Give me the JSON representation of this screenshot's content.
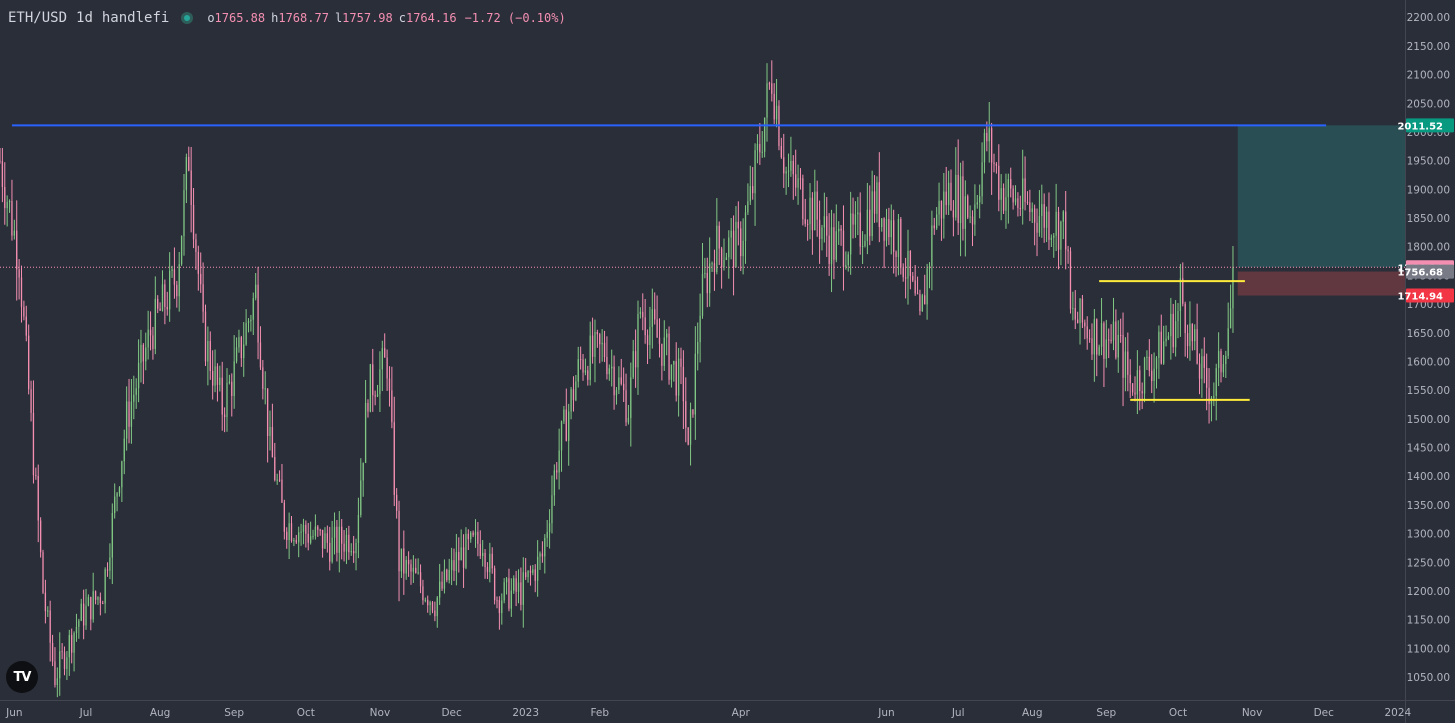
{
  "header": {
    "symbol": "ETH/USD",
    "interval": "1d",
    "source": "handlefi",
    "open_label": "o",
    "open": "1765.88",
    "high_label": "h",
    "high": "1768.77",
    "low_label": "l",
    "low": "1757.98",
    "close_label": "c",
    "close": "1764.16",
    "change": "−1.72 (−0.10%)"
  },
  "logo_text": "TV",
  "colors": {
    "background": "#2a2e39",
    "up": "#81c784",
    "down": "#f48fb1",
    "axis_text": "#b2b5be",
    "resistance_line": "#2962ff",
    "range_lines": "#ffeb3b",
    "target_zone": "#26a69a",
    "stop_zone": "#ef5350"
  },
  "chart_data": {
    "type": "candlestick",
    "ylim": [
      1010,
      2230
    ],
    "y_ticks": [
      1050,
      1100,
      1150,
      1200,
      1250,
      1300,
      1350,
      1400,
      1450,
      1500,
      1550,
      1600,
      1650,
      1700,
      1750,
      1800,
      1850,
      1900,
      1950,
      2000,
      2050,
      2100,
      2150,
      2200
    ],
    "x_range": [
      "2022-05-26",
      "2024-01-04"
    ],
    "x_ticks": [
      {
        "label": "Jun",
        "date": "2022-06-01"
      },
      {
        "label": "Jul",
        "date": "2022-07-01"
      },
      {
        "label": "Aug",
        "date": "2022-08-01"
      },
      {
        "label": "Sep",
        "date": "2022-09-01"
      },
      {
        "label": "Oct",
        "date": "2022-10-01"
      },
      {
        "label": "Nov",
        "date": "2022-11-01"
      },
      {
        "label": "Dec",
        "date": "2022-12-01"
      },
      {
        "label": "2023",
        "date": "2023-01-01"
      },
      {
        "label": "Feb",
        "date": "2023-02-01"
      },
      {
        "label": "Apr",
        "date": "2023-04-01"
      },
      {
        "label": "Jun",
        "date": "2023-06-01"
      },
      {
        "label": "Jul",
        "date": "2023-07-01"
      },
      {
        "label": "Aug",
        "date": "2023-08-01"
      },
      {
        "label": "Sep",
        "date": "2023-09-01"
      },
      {
        "label": "Oct",
        "date": "2023-10-01"
      },
      {
        "label": "Nov",
        "date": "2023-11-01"
      },
      {
        "label": "Dec",
        "date": "2023-12-01"
      },
      {
        "label": "2024",
        "date": "2024-01-01"
      }
    ],
    "price_path": [
      {
        "date": "2022-05-26",
        "price": 1950
      },
      {
        "date": "2022-06-03",
        "price": 1780
      },
      {
        "date": "2022-06-13",
        "price": 1200
      },
      {
        "date": "2022-06-18",
        "price": 1050
      },
      {
        "date": "2022-06-28",
        "price": 1150
      },
      {
        "date": "2022-07-08",
        "price": 1200
      },
      {
        "date": "2022-07-18",
        "price": 1500
      },
      {
        "date": "2022-07-28",
        "price": 1650
      },
      {
        "date": "2022-08-08",
        "price": 1750
      },
      {
        "date": "2022-08-13",
        "price": 1960
      },
      {
        "date": "2022-08-19",
        "price": 1650
      },
      {
        "date": "2022-08-27",
        "price": 1520
      },
      {
        "date": "2022-09-01",
        "price": 1580
      },
      {
        "date": "2022-09-10",
        "price": 1720
      },
      {
        "date": "2022-09-16",
        "price": 1450
      },
      {
        "date": "2022-09-22",
        "price": 1320
      },
      {
        "date": "2022-10-02",
        "price": 1300
      },
      {
        "date": "2022-10-12",
        "price": 1280
      },
      {
        "date": "2022-10-22",
        "price": 1300
      },
      {
        "date": "2022-10-27",
        "price": 1550
      },
      {
        "date": "2022-11-04",
        "price": 1600
      },
      {
        "date": "2022-11-09",
        "price": 1250
      },
      {
        "date": "2022-11-14",
        "price": 1230
      },
      {
        "date": "2022-11-24",
        "price": 1180
      },
      {
        "date": "2022-12-04",
        "price": 1260
      },
      {
        "date": "2022-12-14",
        "price": 1290
      },
      {
        "date": "2022-12-20",
        "price": 1190
      },
      {
        "date": "2022-12-30",
        "price": 1200
      },
      {
        "date": "2023-01-08",
        "price": 1260
      },
      {
        "date": "2023-01-14",
        "price": 1430
      },
      {
        "date": "2023-01-24",
        "price": 1600
      },
      {
        "date": "2023-02-03",
        "price": 1620
      },
      {
        "date": "2023-02-13",
        "price": 1520
      },
      {
        "date": "2023-02-18",
        "price": 1690
      },
      {
        "date": "2023-02-28",
        "price": 1620
      },
      {
        "date": "2023-03-08",
        "price": 1550
      },
      {
        "date": "2023-03-10",
        "price": 1430
      },
      {
        "date": "2023-03-15",
        "price": 1700
      },
      {
        "date": "2023-03-21",
        "price": 1800
      },
      {
        "date": "2023-03-31",
        "price": 1800
      },
      {
        "date": "2023-04-05",
        "price": 1880
      },
      {
        "date": "2023-04-14",
        "price": 2100
      },
      {
        "date": "2023-04-20",
        "price": 1930
      },
      {
        "date": "2023-04-30",
        "price": 1870
      },
      {
        "date": "2023-05-10",
        "price": 1800
      },
      {
        "date": "2023-05-20",
        "price": 1820
      },
      {
        "date": "2023-05-27",
        "price": 1880
      },
      {
        "date": "2023-06-05",
        "price": 1820
      },
      {
        "date": "2023-06-10",
        "price": 1750
      },
      {
        "date": "2023-06-15",
        "price": 1660
      },
      {
        "date": "2023-06-21",
        "price": 1850
      },
      {
        "date": "2023-06-28",
        "price": 1900
      },
      {
        "date": "2023-07-07",
        "price": 1860
      },
      {
        "date": "2023-07-13",
        "price": 1990
      },
      {
        "date": "2023-07-19",
        "price": 1900
      },
      {
        "date": "2023-07-29",
        "price": 1870
      },
      {
        "date": "2023-08-08",
        "price": 1850
      },
      {
        "date": "2023-08-15",
        "price": 1830
      },
      {
        "date": "2023-08-17",
        "price": 1680
      },
      {
        "date": "2023-08-27",
        "price": 1650
      },
      {
        "date": "2023-09-06",
        "price": 1630
      },
      {
        "date": "2023-09-11",
        "price": 1560
      },
      {
        "date": "2023-09-21",
        "price": 1600
      },
      {
        "date": "2023-10-01",
        "price": 1680
      },
      {
        "date": "2023-10-02",
        "price": 1720
      },
      {
        "date": "2023-10-07",
        "price": 1630
      },
      {
        "date": "2023-10-12",
        "price": 1560
      },
      {
        "date": "2023-10-16",
        "price": 1550
      },
      {
        "date": "2023-10-19",
        "price": 1600
      },
      {
        "date": "2023-10-23",
        "price": 1690
      },
      {
        "date": "2023-10-24",
        "price": 1764
      }
    ],
    "drawings": {
      "resistance_line": {
        "price": 2011.52,
        "from": "2022-05-31",
        "to": "2023-12-02"
      },
      "range_top": {
        "price": 1740,
        "from": "2023-08-29",
        "to": "2023-10-29"
      },
      "range_bottom": {
        "price": 1533,
        "from": "2023-09-11",
        "to": "2023-10-31"
      },
      "target_zone": {
        "top": 2011.52,
        "bottom": 1764.16,
        "from": "2023-10-26",
        "to": "2024-01-04"
      },
      "stop_zone": {
        "top": 1756.68,
        "bottom": 1714.94,
        "from": "2023-10-26",
        "to": "2024-01-04"
      }
    },
    "price_labels": [
      {
        "value": 2011.52,
        "text": "2011.52",
        "color": "#089981"
      },
      {
        "value": 1764.16,
        "text": "1764.16",
        "color": "#f48fb1"
      },
      {
        "value": 1756.68,
        "text": "1756.68",
        "color": "#787b86"
      },
      {
        "value": 1714.94,
        "text": "1714.94",
        "color": "#f23645"
      }
    ],
    "last_price": 1764.16
  }
}
